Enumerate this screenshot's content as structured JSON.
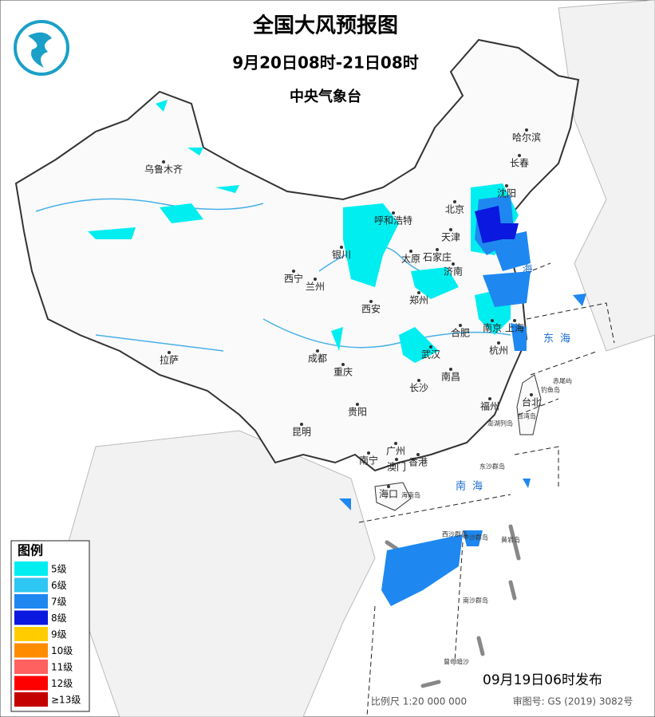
{
  "header": {
    "title": "全国大风预报图",
    "subtitle": "9月20日08时-21日08时",
    "agency": "中央气象台"
  },
  "legend": {
    "title": "图例",
    "items": [
      {
        "label": "5级",
        "color": "#00eef0"
      },
      {
        "label": "6级",
        "color": "#2ec6f2"
      },
      {
        "label": "7级",
        "color": "#1e88f0"
      },
      {
        "label": "8级",
        "color": "#0a18e0"
      },
      {
        "label": "9级",
        "color": "#ffcc00"
      },
      {
        "label": "10级",
        "color": "#ff8c00"
      },
      {
        "label": "11级",
        "color": "#ff6060"
      },
      {
        "label": "12级",
        "color": "#ff0000"
      },
      {
        "label": "≥13级",
        "color": "#c40000"
      }
    ]
  },
  "cities": [
    "乌鲁木齐",
    "哈尔滨",
    "长春",
    "沈阳",
    "北京",
    "呼和浩特",
    "天津",
    "银川",
    "太原",
    "石家庄",
    "济南",
    "西宁",
    "兰州",
    "郑州",
    "西安",
    "合肥",
    "南京",
    "上海",
    "拉萨",
    "成都",
    "武汉",
    "杭州",
    "重庆",
    "南昌",
    "长沙",
    "福州",
    "台北",
    "贵阳",
    "昆明",
    "南宁",
    "广州",
    "澳门",
    "香港",
    "海口"
  ],
  "islands": [
    "赤尾屿",
    "钓鱼岛",
    "台湾岛",
    "澎湖列岛",
    "东沙群岛",
    "海南岛",
    "西沙群岛",
    "中沙群岛",
    "黄岩岛",
    "南沙群岛",
    "曾母暗沙"
  ],
  "seas": [
    "东海",
    "南海",
    "海"
  ],
  "footer": {
    "issued": "09月19日06时发布",
    "scale": "比例尺  1:20 000 000",
    "review": "审图号: GS (2019) 3082号"
  }
}
